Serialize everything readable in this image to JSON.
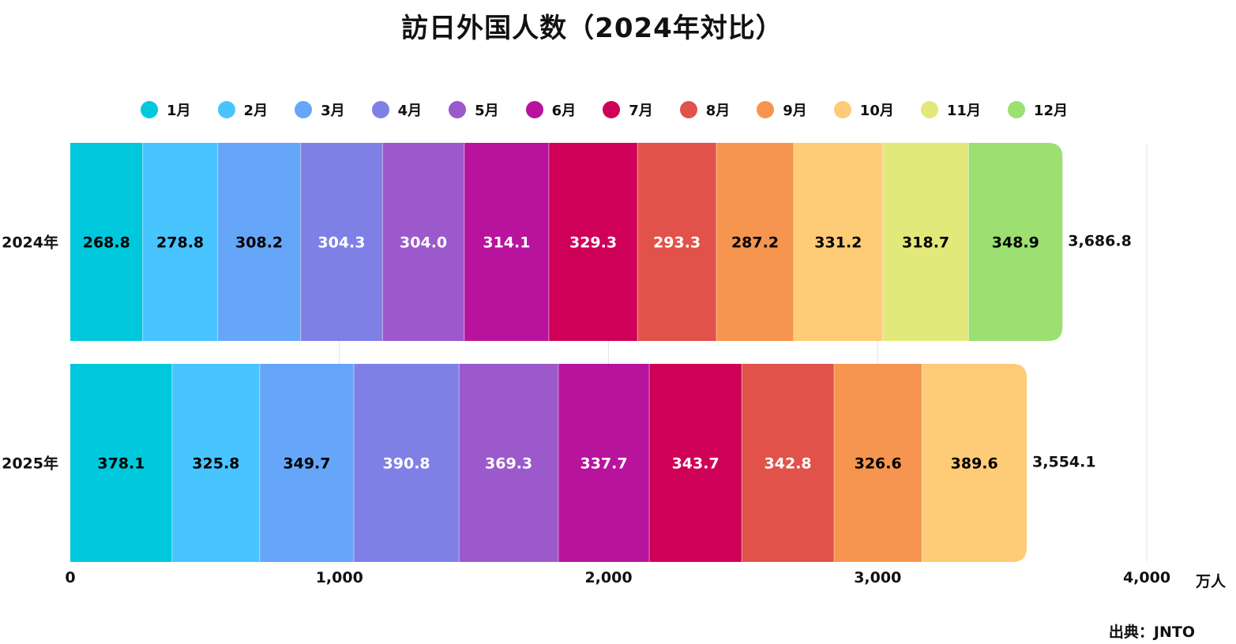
{
  "title": "訪日外国人数（2024年対比）",
  "unit": "万人",
  "source": "出典：JNTO",
  "chart_data": {
    "type": "bar",
    "orientation": "horizontal",
    "stacked": true,
    "title": "訪日外国人数（2024年対比）",
    "xlabel": "万人",
    "ylabel": "",
    "xlim": [
      0,
      4000
    ],
    "x_ticks": [
      0,
      1000,
      2000,
      3000,
      4000
    ],
    "x_tick_labels": [
      "0",
      "1,000",
      "2,000",
      "3,000",
      "4,000"
    ],
    "grid": true,
    "legend_position": "top",
    "categories": [
      "2024年",
      "2025年"
    ],
    "series": [
      {
        "name": "1月",
        "color": "#00C8DC",
        "values": [
          268.8,
          378.1
        ],
        "label_color": [
          "#000000",
          "#000000"
        ]
      },
      {
        "name": "2月",
        "color": "#48C4FF",
        "values": [
          278.8,
          325.8
        ],
        "label_color": [
          "#000000",
          "#000000"
        ]
      },
      {
        "name": "3月",
        "color": "#66A6F8",
        "values": [
          308.2,
          349.7
        ],
        "label_color": [
          "#000000",
          "#000000"
        ]
      },
      {
        "name": "4月",
        "color": "#7F80E6",
        "values": [
          304.3,
          390.8
        ],
        "label_color": [
          "#ffffff",
          "#ffffff"
        ]
      },
      {
        "name": "5月",
        "color": "#9B59CC",
        "values": [
          304.0,
          369.3
        ],
        "label_color": [
          "#ffffff",
          "#ffffff"
        ]
      },
      {
        "name": "6月",
        "color": "#B8139C",
        "values": [
          314.1,
          337.7
        ],
        "label_color": [
          "#ffffff",
          "#ffffff"
        ]
      },
      {
        "name": "7月",
        "color": "#CF0058",
        "values": [
          329.3,
          343.7
        ],
        "label_color": [
          "#ffffff",
          "#ffffff"
        ]
      },
      {
        "name": "8月",
        "color": "#E0524A",
        "values": [
          293.3,
          342.8
        ],
        "label_color": [
          "#ffffff",
          "#ffffff"
        ]
      },
      {
        "name": "9月",
        "color": "#F6954F",
        "values": [
          287.2,
          326.6
        ],
        "label_color": [
          "#000000",
          "#000000"
        ]
      },
      {
        "name": "10月",
        "color": "#FECB76",
        "values": [
          331.2,
          389.6
        ],
        "label_color": [
          "#000000",
          "#000000"
        ]
      },
      {
        "name": "11月",
        "color": "#E3E87A",
        "values": [
          318.7,
          null
        ],
        "label_color": [
          "#000000",
          "#000000"
        ]
      },
      {
        "name": "12月",
        "color": "#9BE070",
        "values": [
          348.9,
          null
        ],
        "label_color": [
          "#000000",
          "#000000"
        ]
      }
    ],
    "totals": [
      3686.8,
      3554.1
    ],
    "total_labels": [
      "3,686.8",
      "3,554.1"
    ],
    "value_labels": [
      [
        "268.8",
        "278.8",
        "308.2",
        "304.3",
        "304.0",
        "314.1",
        "329.3",
        "293.3",
        "287.2",
        "331.2",
        "318.7",
        "348.9"
      ],
      [
        "378.1",
        "325.8",
        "349.7",
        "390.8",
        "369.3",
        "337.7",
        "343.7",
        "342.8",
        "326.6",
        "389.6",
        "",
        ""
      ]
    ]
  }
}
